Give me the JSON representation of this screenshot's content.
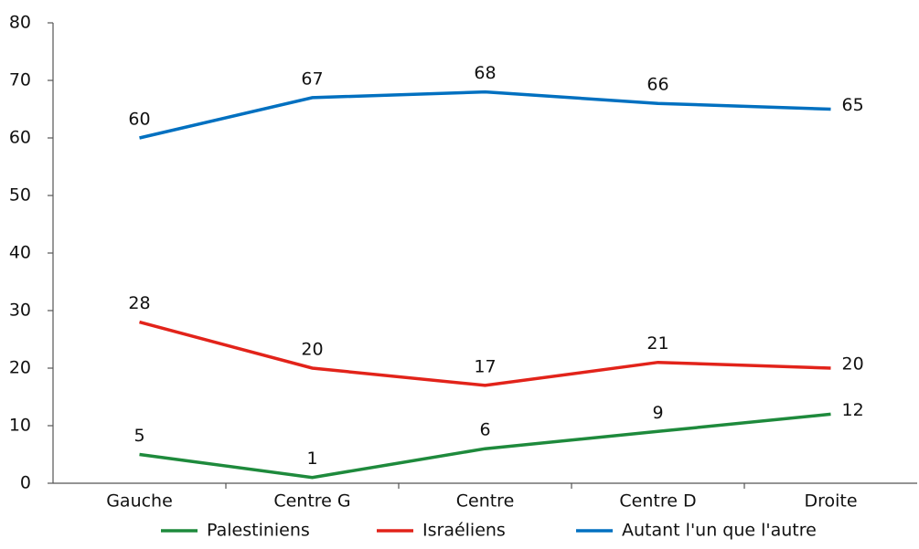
{
  "chart_data": {
    "type": "line",
    "categories": [
      "Gauche",
      "Centre G",
      "Centre",
      "Centre D",
      "Droite"
    ],
    "series": [
      {
        "name": "Palestiniens",
        "color": "#1e8a3c",
        "values": [
          5,
          1,
          6,
          9,
          12
        ]
      },
      {
        "name": "Israéliens",
        "color": "#e2231a",
        "values": [
          28,
          20,
          17,
          21,
          20
        ]
      },
      {
        "name": "Autant l'un que l'autre",
        "color": "#0070c0",
        "values": [
          60,
          67,
          68,
          66,
          65
        ]
      }
    ],
    "ylim": [
      0,
      80
    ],
    "yticks": [
      0,
      10,
      20,
      30,
      40,
      50,
      60,
      70,
      80
    ],
    "grid": false,
    "legend": "bottom"
  }
}
